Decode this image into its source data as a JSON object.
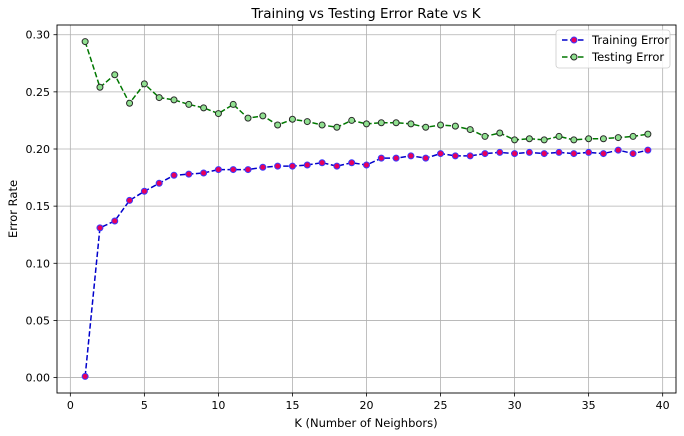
{
  "chart_data": {
    "type": "line",
    "title": "Training vs Testing Error Rate vs K",
    "xlabel": "K (Number of Neighbors)",
    "ylabel": "Error Rate",
    "xlim": [
      -0.9,
      40.9
    ],
    "ylim": [
      -0.0135,
      0.3085
    ],
    "xticks": [
      0,
      5,
      10,
      15,
      20,
      25,
      30,
      35,
      40
    ],
    "yticks": [
      0.0,
      0.05,
      0.1,
      0.15,
      0.2,
      0.25,
      0.3
    ],
    "grid": true,
    "legend": "top-right",
    "x": [
      1,
      2,
      3,
      4,
      5,
      6,
      7,
      8,
      9,
      10,
      11,
      12,
      13,
      14,
      15,
      16,
      17,
      18,
      19,
      20,
      21,
      22,
      23,
      24,
      25,
      26,
      27,
      28,
      29,
      30,
      31,
      32,
      33,
      34,
      35,
      36,
      37,
      38,
      39
    ],
    "series": [
      {
        "name": "Training Error",
        "line_color": "#0000cc",
        "marker_face": "#e6005c",
        "marker_edge": "#3a3aff",
        "values": [
          0.001,
          0.131,
          0.137,
          0.155,
          0.163,
          0.17,
          0.177,
          0.178,
          0.179,
          0.182,
          0.182,
          0.182,
          0.184,
          0.185,
          0.185,
          0.186,
          0.188,
          0.185,
          0.188,
          0.186,
          0.192,
          0.192,
          0.194,
          0.192,
          0.196,
          0.194,
          0.194,
          0.196,
          0.197,
          0.196,
          0.197,
          0.196,
          0.197,
          0.196,
          0.197,
          0.196,
          0.199,
          0.196,
          0.199
        ]
      },
      {
        "name": "Testing Error",
        "line_color": "#007700",
        "marker_face": "#90e090",
        "marker_edge": "#2a2a2a",
        "values": [
          0.294,
          0.254,
          0.265,
          0.24,
          0.257,
          0.245,
          0.243,
          0.239,
          0.236,
          0.231,
          0.239,
          0.227,
          0.229,
          0.221,
          0.226,
          0.224,
          0.221,
          0.219,
          0.225,
          0.222,
          0.223,
          0.223,
          0.222,
          0.219,
          0.221,
          0.22,
          0.217,
          0.211,
          0.214,
          0.208,
          0.209,
          0.208,
          0.211,
          0.208,
          0.209,
          0.209,
          0.21,
          0.211,
          0.213
        ]
      }
    ]
  }
}
